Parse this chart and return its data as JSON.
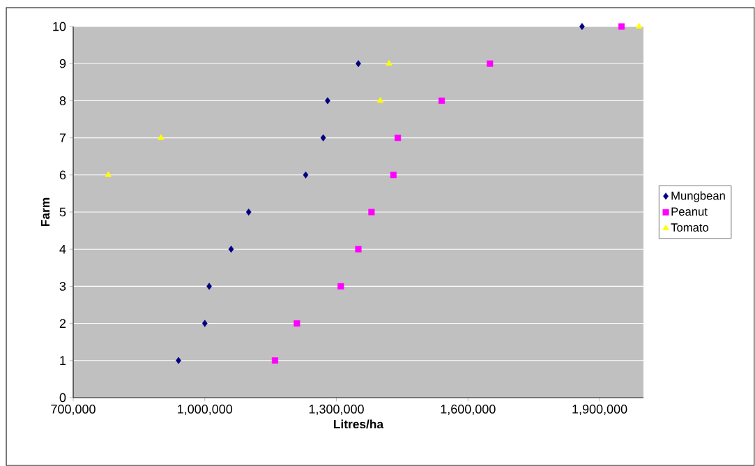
{
  "chart_data": {
    "type": "scatter",
    "xlabel": "Litres/ha",
    "ylabel": "Farm",
    "series": [
      {
        "name": "Mungbean",
        "color": "#000080",
        "marker": "diamond",
        "x": [
          940000,
          1000000,
          1010000,
          1060000,
          1100000,
          1230000,
          1270000,
          1280000,
          1350000,
          1860000
        ],
        "values": [
          1,
          2,
          3,
          4,
          5,
          6,
          7,
          8,
          9,
          10
        ]
      },
      {
        "name": "Peanut",
        "color": "#ff00ff",
        "marker": "square",
        "x": [
          1160000,
          1210000,
          1310000,
          1350000,
          1380000,
          1430000,
          1440000,
          1540000,
          1650000,
          1950000
        ],
        "values": [
          1,
          2,
          3,
          4,
          5,
          6,
          7,
          8,
          9,
          10
        ]
      },
      {
        "name": "Tomato",
        "color": "#ffff00",
        "marker": "triangle",
        "x": [
          780000,
          900000,
          1400000,
          1420000,
          1990000
        ],
        "values": [
          6,
          7,
          8,
          9,
          10
        ]
      }
    ],
    "xlim": [
      700000,
      2000000
    ],
    "ylim": [
      0,
      10
    ],
    "xticks": [
      {
        "value": 700000,
        "label": "700,000"
      },
      {
        "value": 1000000,
        "label": "1,000,000"
      },
      {
        "value": 1300000,
        "label": "1,300,000"
      },
      {
        "value": 1600000,
        "label": "1,600,000"
      },
      {
        "value": 1900000,
        "label": "1,900,000"
      }
    ],
    "yticks": [
      0,
      1,
      2,
      3,
      4,
      5,
      6,
      7,
      8,
      9,
      10
    ],
    "grid": "y",
    "legend": "right"
  }
}
